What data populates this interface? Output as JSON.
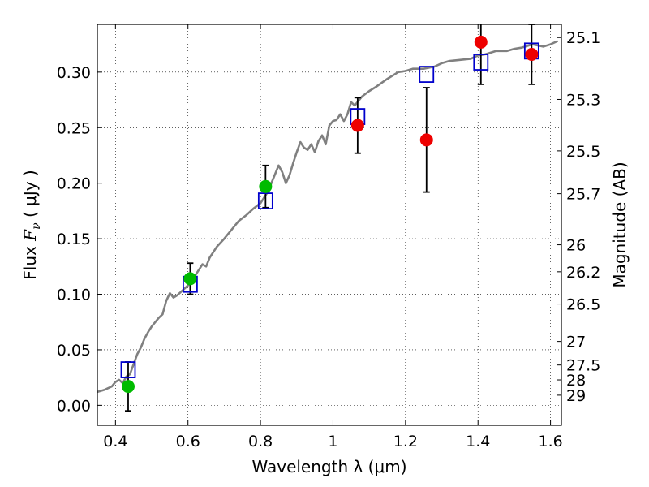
{
  "chart_data": {
    "type": "scatter",
    "xlabel": "Wavelength  λ (μm)",
    "ylabel": "Flux  F_ν  ( μJy )",
    "ylabel_parts": {
      "prefix": "Flux  ",
      "symbol": "F",
      "subscript": "ν",
      "suffix": "  ( μJy )"
    },
    "y2label": "Magnitude (AB)",
    "xlim": [
      0.35,
      1.63
    ],
    "ylim": [
      -0.018,
      0.343
    ],
    "grid": true,
    "x_ticks": [
      {
        "value": 0.4,
        "label": "0.4"
      },
      {
        "value": 0.6,
        "label": "0.6"
      },
      {
        "value": 0.8,
        "label": "0.8"
      },
      {
        "value": 1.0,
        "label": "1"
      },
      {
        "value": 1.2,
        "label": "1.2"
      },
      {
        "value": 1.4,
        "label": "1.4"
      },
      {
        "value": 1.6,
        "label": "1.6"
      }
    ],
    "y_ticks": [
      {
        "value": 0.0,
        "label": "0.00"
      },
      {
        "value": 0.05,
        "label": "0.05"
      },
      {
        "value": 0.1,
        "label": "0.10"
      },
      {
        "value": 0.15,
        "label": "0.15"
      },
      {
        "value": 0.2,
        "label": "0.20"
      },
      {
        "value": 0.25,
        "label": "0.25"
      },
      {
        "value": 0.3,
        "label": "0.30"
      }
    ],
    "y2_ticks": [
      {
        "label": "25.1",
        "value": 25.1
      },
      {
        "label": "25.3",
        "value": 25.3
      },
      {
        "label": "25.5",
        "value": 25.5
      },
      {
        "label": "25.7",
        "value": 25.7
      },
      {
        "label": "26",
        "value": 26
      },
      {
        "label": "26.2",
        "value": 26.2
      },
      {
        "label": "26.5",
        "value": 26.5
      },
      {
        "label": "27",
        "value": 27
      },
      {
        "label": "27.5",
        "value": 27.5
      },
      {
        "label": "28",
        "value": 28
      },
      {
        "label": "29",
        "value": 29
      }
    ],
    "colors": {
      "model": "#808080",
      "green": "#00bb00",
      "red": "#ee0000",
      "square": "#0000cc",
      "errorbar": "#000000"
    },
    "model_spectrum": {
      "x": [
        0.35,
        0.37,
        0.39,
        0.4,
        0.41,
        0.42,
        0.43,
        0.44,
        0.45,
        0.46,
        0.47,
        0.48,
        0.49,
        0.5,
        0.51,
        0.52,
        0.53,
        0.54,
        0.55,
        0.56,
        0.57,
        0.58,
        0.59,
        0.6,
        0.62,
        0.64,
        0.65,
        0.66,
        0.68,
        0.7,
        0.72,
        0.74,
        0.76,
        0.78,
        0.8,
        0.82,
        0.84,
        0.85,
        0.86,
        0.87,
        0.88,
        0.89,
        0.9,
        0.91,
        0.92,
        0.93,
        0.94,
        0.95,
        0.96,
        0.97,
        0.98,
        0.99,
        1.0,
        1.01,
        1.02,
        1.03,
        1.04,
        1.05,
        1.06,
        1.08,
        1.1,
        1.12,
        1.15,
        1.18,
        1.2,
        1.22,
        1.25,
        1.28,
        1.3,
        1.32,
        1.35,
        1.38,
        1.4,
        1.42,
        1.45,
        1.48,
        1.5,
        1.52,
        1.55,
        1.58,
        1.6,
        1.62
      ],
      "y": [
        0.012,
        0.014,
        0.017,
        0.021,
        0.023,
        0.02,
        0.026,
        0.028,
        0.037,
        0.046,
        0.052,
        0.06,
        0.066,
        0.071,
        0.075,
        0.079,
        0.082,
        0.094,
        0.101,
        0.097,
        0.099,
        0.102,
        0.105,
        0.108,
        0.117,
        0.127,
        0.125,
        0.133,
        0.143,
        0.15,
        0.158,
        0.166,
        0.171,
        0.177,
        0.182,
        0.192,
        0.208,
        0.216,
        0.21,
        0.2,
        0.207,
        0.218,
        0.228,
        0.237,
        0.232,
        0.23,
        0.235,
        0.228,
        0.238,
        0.243,
        0.235,
        0.252,
        0.256,
        0.257,
        0.262,
        0.256,
        0.262,
        0.273,
        0.27,
        0.278,
        0.283,
        0.287,
        0.294,
        0.3,
        0.301,
        0.303,
        0.303,
        0.305,
        0.308,
        0.31,
        0.311,
        0.312,
        0.315,
        0.316,
        0.319,
        0.319,
        0.321,
        0.322,
        0.325,
        0.323,
        0.325,
        0.328
      ]
    },
    "model_photometry": {
      "x": [
        0.435,
        0.606,
        0.814,
        1.068,
        1.258,
        1.408,
        1.548
      ],
      "y": [
        0.032,
        0.109,
        0.184,
        0.26,
        0.298,
        0.309,
        0.319
      ]
    },
    "observed_green": {
      "x": [
        0.435,
        0.606,
        0.814
      ],
      "y": [
        0.017,
        0.114,
        0.197
      ],
      "err": [
        0.022,
        0.014,
        0.019
      ]
    },
    "observed_red": {
      "x": [
        1.068,
        1.258,
        1.408,
        1.548
      ],
      "y": [
        0.252,
        0.239,
        0.327,
        0.316
      ],
      "err": [
        0.025,
        0.047,
        0.038,
        0.027
      ]
    }
  }
}
